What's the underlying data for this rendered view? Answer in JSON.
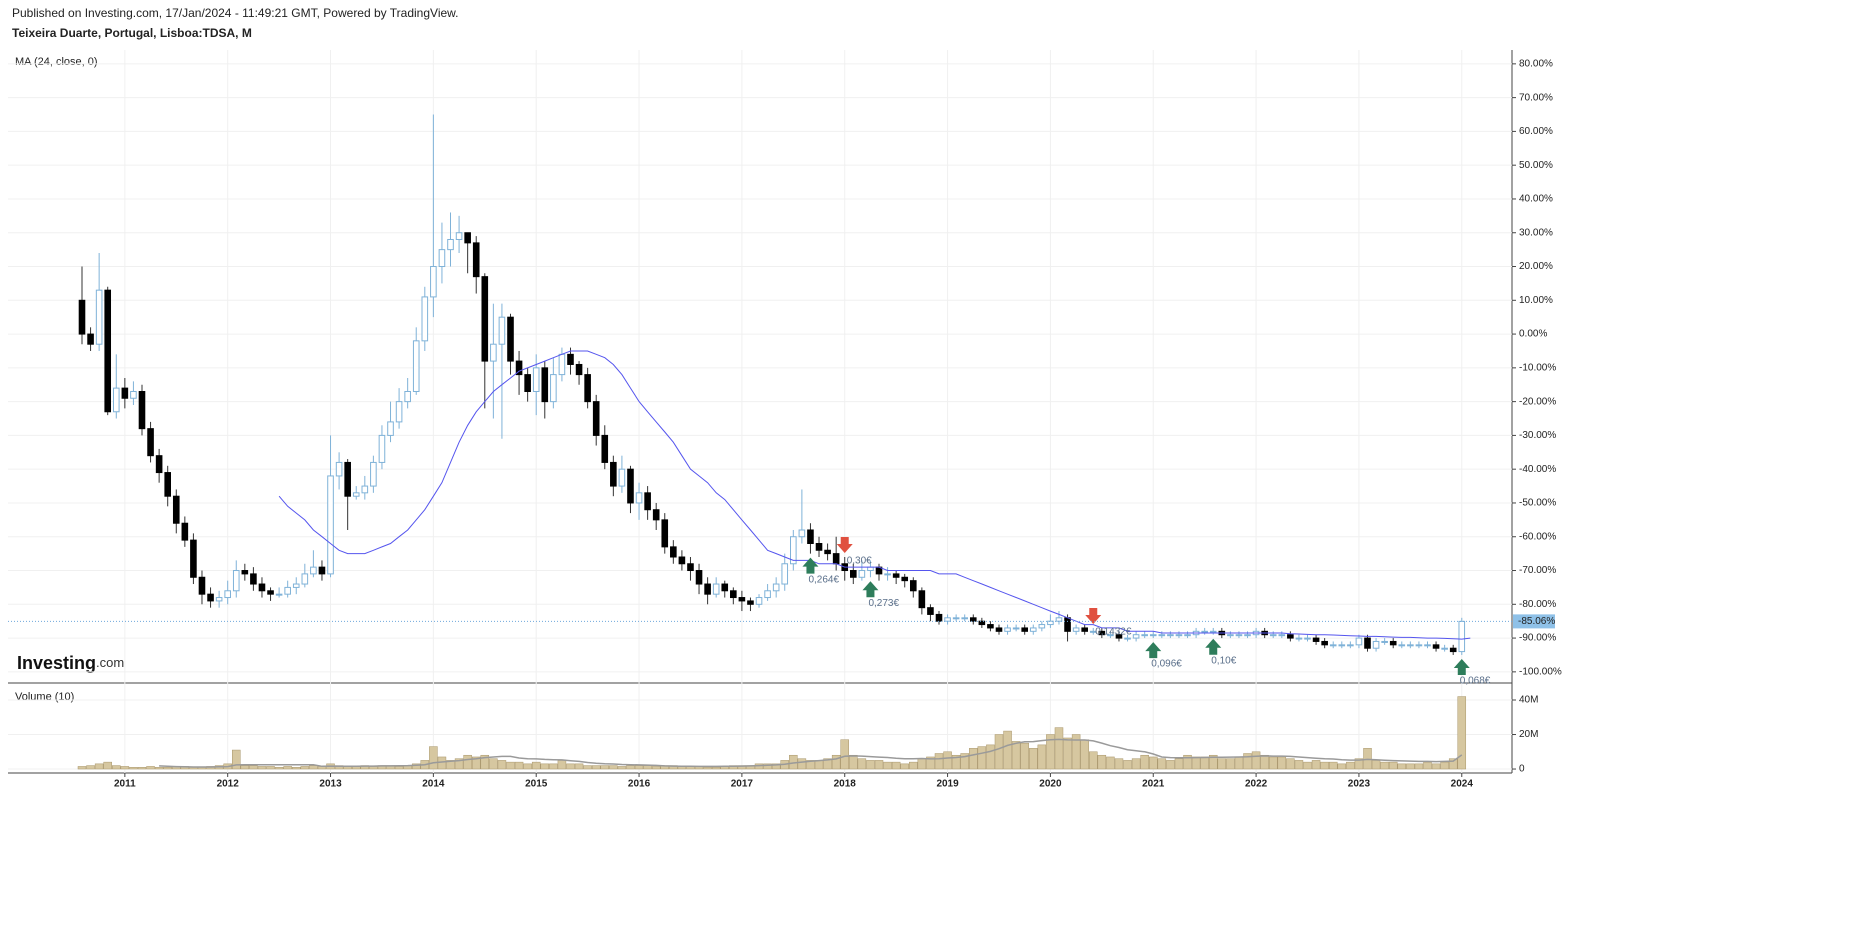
{
  "header": {
    "published": "Published on Investing.com, 17/Jan/2024 - 11:49:21 GMT, Powered by TradingView.",
    "symbol": "Teixeira Duarte, Portugal, Lisboa:TDSA, M"
  },
  "logo": {
    "name": "Investing",
    "suffix": ".com"
  },
  "chart_data": {
    "type": "candlestick",
    "categories": [
      null,
      null,
      null,
      null,
      null,
      "2011",
      null,
      null,
      null,
      null,
      null,
      null,
      null,
      null,
      null,
      null,
      null,
      "2012",
      null,
      null,
      null,
      null,
      null,
      null,
      null,
      null,
      null,
      null,
      null,
      "2013",
      null,
      null,
      null,
      null,
      null,
      null,
      null,
      null,
      null,
      null,
      null,
      "2014",
      null,
      null,
      null,
      null,
      null,
      null,
      null,
      null,
      null,
      null,
      null,
      "2015",
      null,
      null,
      null,
      null,
      null,
      null,
      null,
      null,
      null,
      null,
      null,
      "2016",
      null,
      null,
      null,
      null,
      null,
      null,
      null,
      null,
      null,
      null,
      null,
      "2017",
      null,
      null,
      null,
      null,
      null,
      null,
      null,
      null,
      null,
      null,
      null,
      "2018",
      null,
      null,
      null,
      null,
      null,
      null,
      null,
      null,
      null,
      null,
      null,
      "2019",
      null,
      null,
      null,
      null,
      null,
      null,
      null,
      null,
      null,
      null,
      null,
      "2020",
      null,
      null,
      null,
      null,
      null,
      null,
      null,
      null,
      null,
      null,
      null,
      "2021",
      null,
      null,
      null,
      null,
      null,
      null,
      null,
      null,
      null,
      null,
      null,
      "2022",
      null,
      null,
      null,
      null,
      null,
      null,
      null,
      null,
      null,
      null,
      null,
      "2023",
      null,
      null,
      null,
      null,
      null,
      null,
      null,
      null,
      null,
      null,
      null,
      "2024"
    ],
    "open": [
      10,
      0,
      -3,
      13,
      -23,
      -16,
      -19,
      -17,
      -28,
      -36,
      -41,
      -48,
      -56,
      -61,
      -72,
      -77,
      -79,
      -78,
      -76,
      -70,
      -71,
      -74,
      -76,
      -77,
      -77,
      -75,
      -74,
      -71,
      -69,
      -71,
      -42,
      -38,
      -48,
      -47,
      -45,
      -38,
      -30,
      -26,
      -20,
      -17,
      -2,
      11,
      20,
      25,
      28,
      30,
      27,
      17,
      -8,
      -3,
      5,
      -8,
      -12,
      -17,
      -10,
      -20,
      -12,
      -6,
      -9,
      -12,
      -20,
      -30,
      -38,
      -45,
      -40,
      -50,
      -47,
      -52,
      -55,
      -63,
      -66,
      -68,
      -70,
      -74,
      -77,
      -74,
      -76,
      -78,
      -79,
      -80,
      -78,
      -76,
      -74,
      -68,
      -60,
      -58,
      -62,
      -64,
      -65,
      -68,
      -70,
      -72,
      -70,
      -69,
      -71,
      -71,
      -72,
      -73,
      -76,
      -81,
      -83,
      -85,
      -84,
      -84,
      -84,
      -85,
      -86,
      -87,
      -88,
      -87,
      -87,
      -88,
      -87,
      -86,
      -85,
      -84,
      -88,
      -87,
      -88,
      -88,
      -89,
      -89,
      -90,
      -90,
      -89,
      -89,
      -89,
      -89,
      -89,
      -89,
      -89,
      -88,
      -88,
      -88,
      -89,
      -89,
      -89,
      -89,
      -88,
      -89,
      -89,
      -89,
      -90,
      -90,
      -90,
      -91,
      -92,
      -92,
      -92,
      -92,
      -90,
      -93,
      -91,
      -91,
      -92,
      -92,
      -92,
      -92,
      -92,
      -93,
      -93,
      -94
    ],
    "high": [
      20,
      2,
      24,
      14,
      -6,
      -13,
      -14,
      -15,
      -26,
      -34,
      -39,
      -46,
      -54,
      -59,
      -70,
      -75,
      -76,
      -73,
      -67,
      -68,
      -69,
      -72,
      -75,
      -75,
      -73,
      -72,
      -68,
      -64,
      -67,
      -30,
      -35,
      -37,
      -45,
      -42,
      -36,
      -27,
      -20,
      -16,
      -13,
      2,
      14,
      65,
      33,
      36,
      35,
      30,
      29,
      18,
      9,
      9,
      6,
      -5,
      -10,
      -6,
      -8,
      -7,
      -4,
      -4,
      -8,
      -10,
      -18,
      -27,
      -36,
      -36,
      -39,
      -44,
      -45,
      -50,
      -53,
      -61,
      -64,
      -66,
      -68,
      -72,
      -72,
      -73,
      -75,
      -76,
      -78,
      -77,
      -74,
      -72,
      -65,
      -58,
      -46,
      -56,
      -60,
      -62,
      -60,
      -66,
      -68,
      -67,
      -67,
      -68,
      -69,
      -70,
      -71,
      -72,
      -75,
      -80,
      -82,
      -83,
      -83,
      -83,
      -83,
      -84,
      -85,
      -86,
      -86,
      -86,
      -86,
      -86,
      -85,
      -83,
      -82,
      -83,
      -86,
      -86,
      -87,
      -87,
      -88,
      -88,
      -89,
      -88,
      -88,
      -88,
      -88,
      -88,
      -88,
      -88,
      -87,
      -87,
      -87,
      -87,
      -88,
      -88,
      -88,
      -87,
      -87,
      -88,
      -88,
      -88,
      -89,
      -89,
      -89,
      -90,
      -91,
      -91,
      -91,
      -89,
      -89,
      -90,
      -90,
      -90,
      -91,
      -91,
      -91,
      -91,
      -91,
      -92,
      -92,
      -84
    ],
    "low": [
      -3,
      -5,
      -5,
      -24,
      -25,
      -22,
      -21,
      -30,
      -38,
      -44,
      -51,
      -59,
      -63,
      -74,
      -80,
      -81,
      -81,
      -80,
      -78,
      -73,
      -76,
      -78,
      -79,
      -78,
      -78,
      -77,
      -75,
      -72,
      -73,
      -72,
      -46,
      -58,
      -49,
      -49,
      -47,
      -40,
      -32,
      -28,
      -22,
      -18,
      -5,
      5,
      15,
      20,
      24,
      18,
      12,
      -22,
      -25,
      -31,
      -12,
      -18,
      -20,
      -24,
      -25,
      -22,
      -14,
      -12,
      -15,
      -22,
      -33,
      -40,
      -48,
      -47,
      -53,
      -55,
      -55,
      -58,
      -65,
      -68,
      -70,
      -73,
      -77,
      -80,
      -78,
      -78,
      -80,
      -82,
      -82,
      -81,
      -79,
      -78,
      -76,
      -70,
      -62,
      -65,
      -66,
      -67,
      -70,
      -73,
      -74,
      -73,
      -72,
      -73,
      -73,
      -74,
      -75,
      -78,
      -83,
      -85,
      -86,
      -86,
      -85,
      -85,
      -86,
      -87,
      -88,
      -89,
      -89,
      -88,
      -89,
      -89,
      -88,
      -87,
      -86,
      -91,
      -89,
      -89,
      -89,
      -90,
      -90,
      -91,
      -91,
      -91,
      -90,
      -90,
      -90,
      -90,
      -90,
      -90,
      -90,
      -89,
      -89,
      -90,
      -90,
      -90,
      -90,
      -90,
      -90,
      -90,
      -90,
      -91,
      -91,
      -91,
      -92,
      -93,
      -93,
      -93,
      -93,
      -93,
      -94,
      -94,
      -92,
      -93,
      -93,
      -93,
      -93,
      -93,
      -94,
      -94,
      -95,
      -95
    ],
    "close": [
      0,
      -3,
      13,
      -23,
      -16,
      -19,
      -17,
      -28,
      -36,
      -41,
      -48,
      -56,
      -61,
      -72,
      -77,
      -79,
      -78,
      -76,
      -70,
      -71,
      -74,
      -76,
      -77,
      -77,
      -75,
      -74,
      -71,
      -69,
      -71,
      -42,
      -38,
      -48,
      -47,
      -45,
      -38,
      -30,
      -26,
      -20,
      -17,
      -2,
      11,
      20,
      25,
      28,
      30,
      27,
      17,
      -8,
      -3,
      5,
      -8,
      -12,
      -17,
      -10,
      -20,
      -12,
      -6,
      -9,
      -12,
      -20,
      -30,
      -38,
      -45,
      -40,
      -50,
      -47,
      -52,
      -55,
      -63,
      -66,
      -68,
      -70,
      -74,
      -77,
      -74,
      -76,
      -78,
      -79,
      -80,
      -78,
      -76,
      -74,
      -68,
      -60,
      -58,
      -62,
      -64,
      -65,
      -68,
      -70,
      -72,
      -70,
      -69,
      -71,
      -71,
      -72,
      -73,
      -76,
      -81,
      -83,
      -85,
      -84,
      -84,
      -84,
      -85,
      -86,
      -87,
      -88,
      -87,
      -87,
      -88,
      -87,
      -86,
      -85,
      -84,
      -88,
      -87,
      -88,
      -88,
      -89,
      -89,
      -90,
      -90,
      -89,
      -89,
      -89,
      -89,
      -89,
      -89,
      -89,
      -88,
      -88,
      -88,
      -89,
      -89,
      -89,
      -89,
      -88,
      -89,
      -89,
      -89,
      -90,
      -90,
      -90,
      -91,
      -92,
      -92,
      -92,
      -92,
      -90,
      -93,
      -91,
      -91,
      -92,
      -92,
      -92,
      -92,
      -92,
      -93,
      -93,
      -94,
      -85.06
    ],
    "up_color": "#ffffff",
    "up_border": "#7fb2d8",
    "down_color": "#000000",
    "last_label": "-85.06%",
    "ylim": [
      -103.3,
      84.1
    ],
    "yticks": [
      {
        "value": 80,
        "label": "80.00%"
      },
      {
        "value": 70,
        "label": "70.00%"
      },
      {
        "value": 60,
        "label": "60.00%"
      },
      {
        "value": 50,
        "label": "50.00%"
      },
      {
        "value": 40,
        "label": "40.00%"
      },
      {
        "value": 30,
        "label": "30.00%"
      },
      {
        "value": 20,
        "label": "20.00%"
      },
      {
        "value": 10,
        "label": "10.00%"
      },
      {
        "value": 0,
        "label": "0.00%"
      },
      {
        "value": -10,
        "label": "-10.00%"
      },
      {
        "value": -20,
        "label": "-20.00%"
      },
      {
        "value": -30,
        "label": "-30.00%"
      },
      {
        "value": -40,
        "label": "-40.00%"
      },
      {
        "value": -50,
        "label": "-50.00%"
      },
      {
        "value": -60,
        "label": "-60.00%"
      },
      {
        "value": -70,
        "label": "-70.00%"
      },
      {
        "value": -80,
        "label": "-80.00%"
      },
      {
        "value": -90,
        "label": "-90.00%"
      },
      {
        "value": -100,
        "label": "-100.00%"
      }
    ],
    "grid": true,
    "ma": {
      "name": "MA (24, close, 0)",
      "color": "#5555ee",
      "values": [
        null,
        null,
        null,
        null,
        null,
        null,
        null,
        null,
        null,
        null,
        null,
        null,
        null,
        null,
        null,
        null,
        null,
        null,
        null,
        null,
        null,
        null,
        null,
        -48,
        -51,
        -53,
        -55,
        -58,
        -60,
        -62,
        -64,
        -65,
        -65,
        -65,
        -64,
        -63,
        -62,
        -60,
        -58,
        -55,
        -52,
        -48,
        -44,
        -38,
        -32,
        -27,
        -23,
        -20,
        -17,
        -15,
        -13,
        -11,
        -10,
        -9,
        -8,
        -7,
        -6,
        -5,
        -5,
        -5,
        -6,
        -7,
        -9,
        -12,
        -16,
        -20,
        -23,
        -26,
        -29,
        -32,
        -36,
        -40,
        -42,
        -44,
        -47,
        -49,
        -52,
        -55,
        -58,
        -61,
        -64,
        -65,
        -66,
        -67,
        -67,
        -67,
        -68,
        -68,
        -68,
        -69,
        -69,
        -69,
        -69,
        -69,
        -70,
        -70,
        -70,
        -70,
        -70,
        -70,
        -71,
        -71,
        -71,
        -72,
        -73,
        -74,
        -75,
        -76,
        -77,
        -78,
        -79,
        -80,
        -81,
        -82,
        -83,
        -84,
        -85,
        -86,
        -86,
        -87,
        -87,
        -87,
        -88,
        -88,
        -88,
        -88,
        -88.5,
        -88.5,
        -88.5,
        -88.5,
        -88.5,
        -88.5,
        -88.5,
        -88.5,
        -88.5,
        -88.5,
        -88.5,
        -88.5,
        -88.5,
        -88.5,
        -88.5,
        -88.7,
        -88.8,
        -88.9,
        -89,
        -89,
        -89.1,
        -89.2,
        -89.3,
        -89.4,
        -89.5,
        -89.5,
        -89.6,
        -89.7,
        -89.8,
        -89.8,
        -89.9,
        -90,
        -90,
        -90.1,
        -90.2,
        -90.3,
        -90
      ]
    },
    "events": [
      {
        "i": 85,
        "kind": "up",
        "label": "0,264€"
      },
      {
        "i": 89,
        "kind": "down",
        "label": "0,30€"
      },
      {
        "i": 92,
        "kind": "up",
        "label": "0,273€"
      },
      {
        "i": 118,
        "kind": "down",
        "label": "0,1432€"
      },
      {
        "i": 125,
        "kind": "up",
        "label": "0,096€"
      },
      {
        "i": 132,
        "kind": "up",
        "label": "0,10€"
      },
      {
        "i": 161,
        "kind": "up",
        "label": "0,068€"
      }
    ],
    "volume": {
      "title": "Volume (10)",
      "color": "#d6c7a0",
      "border": "#a8956a",
      "ma_color": "#9a9a9a",
      "values": [
        1.5,
        2,
        3,
        4,
        2,
        1.5,
        1,
        1,
        1.5,
        1,
        1,
        1.5,
        1.5,
        1,
        1,
        1.5,
        2,
        3,
        11,
        2,
        2,
        1.5,
        1.5,
        1,
        1.5,
        1,
        1.5,
        2,
        1.5,
        3,
        2,
        1.5,
        1.5,
        2,
        1.5,
        2,
        2,
        1.5,
        2,
        3,
        5,
        13,
        7,
        5,
        6,
        8,
        7,
        8,
        6,
        5,
        4,
        4,
        3,
        4,
        3,
        3,
        5,
        3,
        3,
        2,
        2,
        2,
        2,
        1.5,
        2,
        2,
        2,
        1.5,
        2,
        2,
        1.5,
        1.5,
        1.5,
        1,
        1,
        1.5,
        2,
        2,
        2,
        3,
        3,
        3,
        5,
        8,
        6,
        5,
        5,
        6,
        8,
        17,
        8,
        6,
        5,
        5,
        4,
        4,
        3,
        4,
        6,
        7,
        9,
        10,
        8,
        9,
        12,
        13,
        14,
        20,
        22,
        16,
        15,
        12,
        14,
        20,
        24,
        18,
        20,
        17,
        10,
        8,
        7,
        6,
        5,
        6,
        8,
        7,
        6,
        5,
        6,
        8,
        7,
        7,
        8,
        6,
        6,
        7,
        9,
        10,
        8,
        7,
        7,
        6,
        5,
        4,
        5,
        4,
        4,
        3,
        4,
        6,
        12,
        5,
        4,
        4,
        3,
        3,
        3,
        4,
        3,
        4,
        6,
        42
      ],
      "ma": [
        null,
        null,
        null,
        null,
        null,
        null,
        null,
        null,
        null,
        1.8,
        1.6,
        1.4,
        1.3,
        1.2,
        1.2,
        1.2,
        1.3,
        1.4,
        2.4,
        2.5,
        2.5,
        2.5,
        2.5,
        2.5,
        2.5,
        2.5,
        2.5,
        2.5,
        1.6,
        1.7,
        1.6,
        1.6,
        1.6,
        1.7,
        1.7,
        1.8,
        1.8,
        1.9,
        2,
        2.2,
        2.5,
        3.6,
        4.1,
        4.5,
        4.9,
        5.5,
        6,
        6.6,
        7,
        7.3,
        7.3,
        6.4,
        6,
        5.9,
        5.6,
        5.4,
        5.3,
        4.8,
        4.4,
        3.8,
        3.4,
        3.1,
        2.9,
        2.6,
        2.5,
        2.4,
        2.3,
        2.1,
        1.8,
        1.7,
        1.6,
        1.6,
        1.5,
        1.5,
        1.5,
        1.6,
        1.6,
        1.7,
        1.8,
        2,
        2.2,
        2.4,
        2.8,
        3.5,
        4,
        4.5,
        4.9,
        5.3,
        5.9,
        7.4,
        7.6,
        7.5,
        7.2,
        6.9,
        6.7,
        6.3,
        6,
        6,
        6.1,
        5.9,
        6,
        6.4,
        6.7,
        7.2,
        8.2,
        9.2,
        10.2,
        11.8,
        13.7,
        14.9,
        15.8,
        15.9,
        16.5,
        17,
        17.2,
        16.9,
        16.8,
        16.8,
        16.3,
        15,
        13.5,
        12.5,
        11.2,
        10.6,
        10,
        8.7,
        7,
        6.6,
        6.5,
        6.5,
        6.6,
        6.7,
        6.8,
        6.8,
        6.9,
        7,
        7.1,
        7.4,
        7.6,
        7.5,
        7.5,
        7.3,
        7,
        6.6,
        6.3,
        6,
        5.8,
        5.4,
        5.2,
        5.2,
        5.6,
        5.4,
        5.1,
        4.9,
        4.7,
        4.6,
        4.4,
        4.4,
        4.3,
        4.4,
        4.6,
        8.2
      ],
      "ylim": [
        -2.3,
        48.7
      ],
      "yticks": [
        0,
        {
          "value": 20,
          "label": "20M"
        },
        {
          "value": 40,
          "label": "40M"
        }
      ]
    }
  }
}
